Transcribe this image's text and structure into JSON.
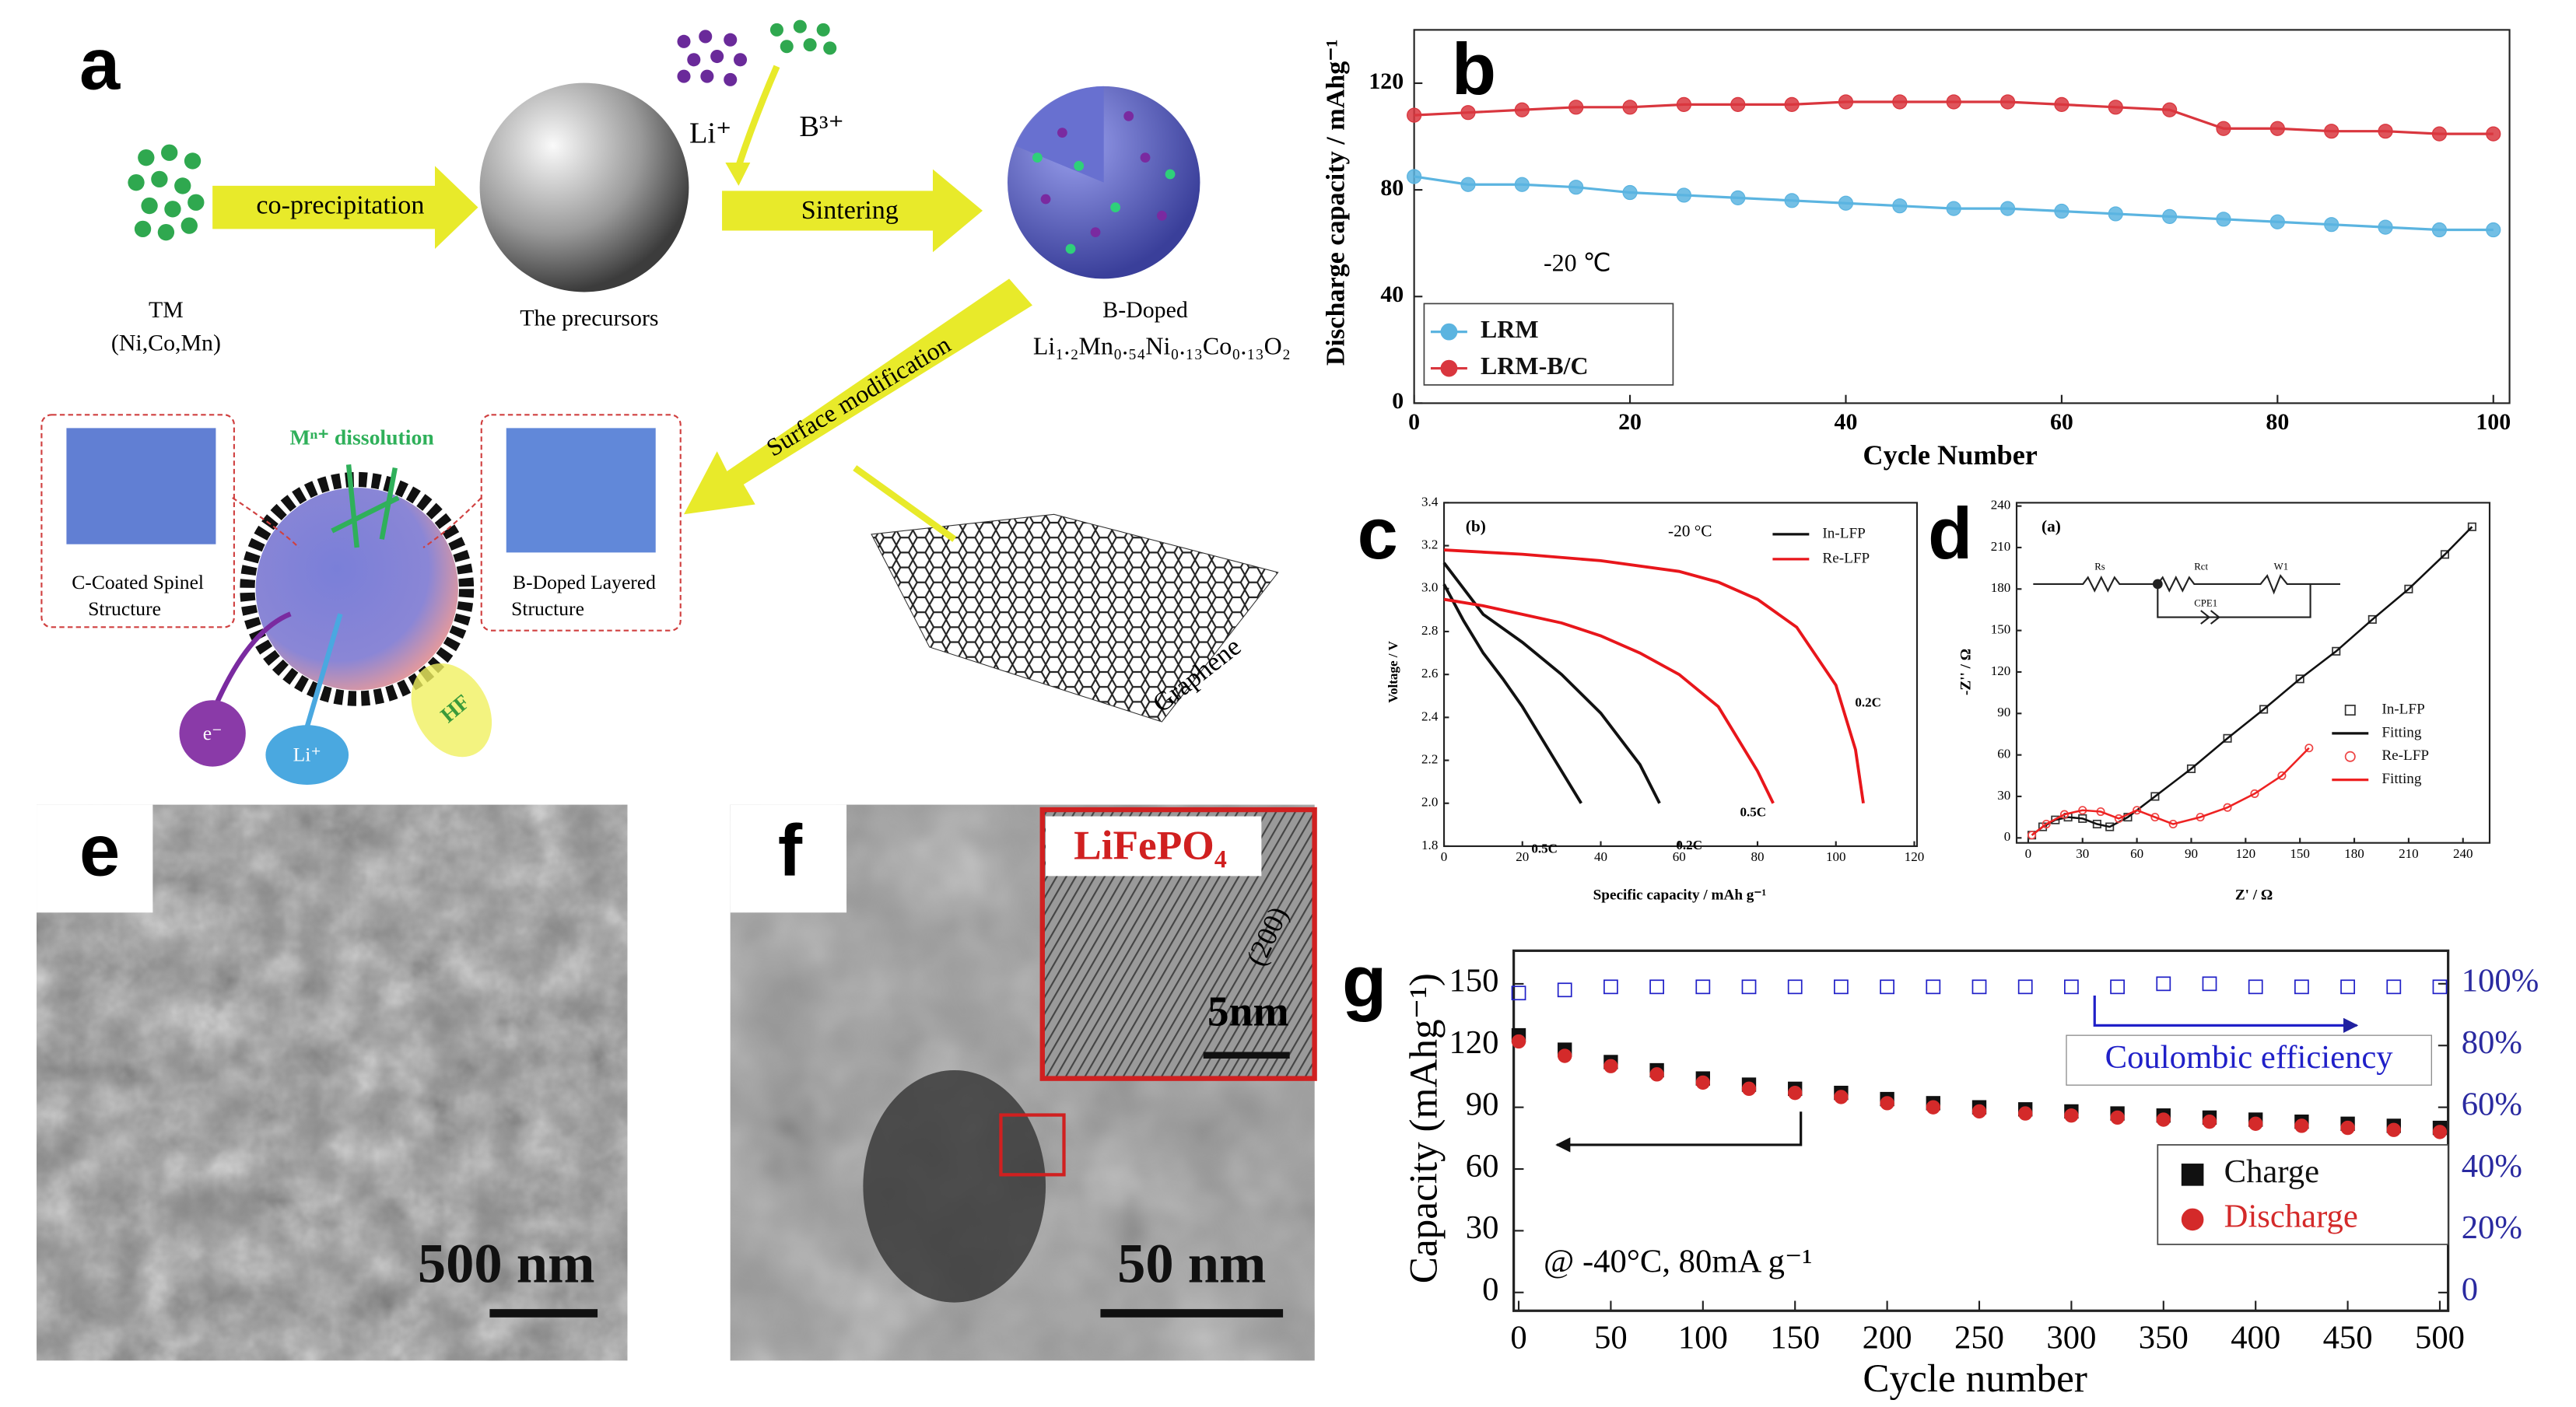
{
  "panels": {
    "a": "a",
    "b": "b",
    "c": "c",
    "d": "d",
    "e": "e",
    "f": "f",
    "g": "g"
  },
  "diagram": {
    "tm": "TM",
    "tm_elements": "(Ni,Co,Mn)",
    "coprecipitation": "co-precipitation",
    "precursors": "The precursors",
    "li": "Li⁺",
    "b": "B³⁺",
    "sintering": "Sintering",
    "bdoped": "B-Doped",
    "formula": "Li₁.₂Mn₀.₅₄Ni₀.₁₃Co₀.₁₃O₂",
    "surface": "Surface modification",
    "dissolution": "Mⁿ⁺ dissolution",
    "spinel_1": "C-Coated Spinel",
    "spinel_2": "Structure",
    "layered_1": "B-Doped Layered",
    "layered_2": "Structure",
    "graphene": "Graphene",
    "electron": "e⁻",
    "li_ion": "Li⁺",
    "hf": "HF"
  },
  "micrographs": {
    "e_scale": "500 nm",
    "f_scale": "50 nm",
    "f_inset": "LiFePO₄",
    "f_plane": "(200)",
    "f_inset_scale": "5nm"
  },
  "chart_data": [
    {
      "type": "line",
      "annotation": "-20 ℃",
      "x_label": "Cycle Number",
      "y_label": "Discharge capacity / mAhg⁻¹",
      "x": [
        0,
        5,
        10,
        15,
        20,
        25,
        30,
        35,
        40,
        45,
        50,
        55,
        60,
        65,
        70,
        75,
        80,
        85,
        90,
        95,
        100
      ],
      "series": [
        {
          "name": "LRM",
          "color": "#5bb4e0",
          "marker": "circle",
          "values": [
            85,
            82,
            82,
            81,
            79,
            78,
            77,
            76,
            75,
            74,
            73,
            73,
            72,
            71,
            70,
            69,
            68,
            67,
            66,
            65,
            65
          ]
        },
        {
          "name": "LRM-B/C",
          "color": "#d9363e",
          "marker": "circle",
          "values": [
            108,
            109,
            110,
            111,
            111,
            112,
            112,
            112,
            113,
            113,
            113,
            113,
            112,
            111,
            110,
            103,
            103,
            102,
            102,
            101,
            101
          ]
        }
      ],
      "xlim": [
        0,
        101.5
      ],
      "xticks": [
        0,
        20,
        40,
        60,
        80,
        100
      ],
      "ylim": [
        0,
        140
      ],
      "yticks": [
        0,
        40,
        80,
        120
      ],
      "legend": "lower left"
    },
    {
      "type": "line",
      "panel_label": "(b)",
      "annotation": "-20 °C",
      "x_label": "Specific capacity / mAh g⁻¹",
      "y_label": "Voltage / V",
      "series": [
        {
          "name": "In-LFP",
          "color": "#111111",
          "curves": [
            {
              "label": "0.5C",
              "x": [
                0,
                5,
                10,
                15,
                20,
                25,
                30,
                35
              ],
              "values": [
                3.02,
                2.85,
                2.7,
                2.58,
                2.45,
                2.3,
                2.15,
                2.0
              ]
            },
            {
              "label": "0.2C",
              "x": [
                0,
                5,
                10,
                20,
                30,
                40,
                50,
                55
              ],
              "values": [
                3.12,
                3.0,
                2.88,
                2.75,
                2.6,
                2.42,
                2.18,
                2.0
              ]
            }
          ]
        },
        {
          "name": "Re-LFP",
          "color": "#e8161b",
          "curves": [
            {
              "label": "0.5C",
              "x": [
                0,
                10,
                20,
                30,
                40,
                50,
                60,
                70,
                80,
                84
              ],
              "values": [
                2.95,
                2.92,
                2.88,
                2.84,
                2.78,
                2.7,
                2.6,
                2.45,
                2.15,
                2.0
              ]
            },
            {
              "label": "0.2C",
              "x": [
                0,
                20,
                40,
                60,
                70,
                80,
                90,
                100,
                105,
                107
              ],
              "values": [
                3.18,
                3.16,
                3.13,
                3.08,
                3.03,
                2.95,
                2.82,
                2.55,
                2.25,
                2.0
              ]
            }
          ]
        }
      ],
      "xlim": [
        0,
        120.7
      ],
      "xticks": [
        0,
        20,
        40,
        60,
        80,
        100,
        120
      ],
      "ylim": [
        1.8,
        3.4
      ],
      "yticks": [
        1.8,
        {
          "value": 2,
          "label": "2.0"
        },
        2.2,
        2.4,
        2.6,
        2.8,
        {
          "value": 3,
          "label": "3.0"
        },
        3.2,
        3.4
      ],
      "legend": "upper right"
    },
    {
      "type": "scatter",
      "panel_label": "(a)",
      "x_label": "Z' / Ω",
      "y_label": "-Z'' / Ω",
      "circuit_labels": [
        "Rs",
        "Rct",
        "W1",
        "CPE1"
      ],
      "series": [
        {
          "name": "In-LFP",
          "color": "#333333",
          "marker": "open-square",
          "x": [
            2,
            8,
            15,
            22,
            30,
            38,
            45,
            55,
            70,
            90,
            110,
            130,
            150,
            170,
            190,
            210,
            230,
            245
          ],
          "values": [
            2,
            8,
            13,
            15,
            14,
            10,
            8,
            15,
            30,
            50,
            72,
            93,
            115,
            135,
            158,
            180,
            205,
            225
          ]
        },
        {
          "name": "Fitting",
          "color": "#111111",
          "line": true,
          "x": [
            2,
            8,
            15,
            22,
            30,
            38,
            45,
            55,
            70,
            90,
            110,
            130,
            150,
            170,
            190,
            210,
            230,
            245
          ],
          "values": [
            2,
            8,
            13,
            15,
            14,
            10,
            8,
            15,
            30,
            50,
            72,
            93,
            115,
            135,
            158,
            180,
            205,
            225
          ]
        },
        {
          "name": "Re-LFP",
          "color": "#ee4444",
          "marker": "open-circle",
          "x": [
            2,
            10,
            20,
            30,
            40,
            50,
            60,
            70,
            80,
            95,
            110,
            125,
            140,
            155
          ],
          "values": [
            2,
            10,
            17,
            20,
            19,
            14,
            20,
            15,
            10,
            15,
            22,
            32,
            45,
            65
          ]
        },
        {
          "name": "Fitting",
          "color": "#ee2222",
          "line": true,
          "x": [
            2,
            10,
            20,
            30,
            40,
            50,
            60,
            70,
            80,
            95,
            110,
            125,
            140,
            155
          ],
          "values": [
            2,
            10,
            17,
            20,
            19,
            14,
            20,
            15,
            10,
            15,
            22,
            32,
            45,
            65
          ]
        }
      ],
      "xlim": [
        -6.4,
        254.7
      ],
      "xticks": [
        0,
        30,
        60,
        90,
        120,
        150,
        180,
        210,
        240
      ],
      "ylim": [
        -3.6,
        242.4
      ],
      "yticks": [
        0,
        30,
        60,
        90,
        120,
        150,
        180,
        210,
        240
      ],
      "legend": "right"
    },
    {
      "type": "scatter",
      "annotation": "@ -40°C, 80mA g⁻¹",
      "x_label": "Cycle number",
      "y_label": "Capacity (mAhg⁻¹)",
      "x": [
        0,
        25,
        50,
        75,
        100,
        125,
        150,
        175,
        200,
        225,
        250,
        275,
        300,
        325,
        350,
        375,
        400,
        425,
        450,
        475,
        500
      ],
      "series": [
        {
          "name": "Charge",
          "color": "#111111",
          "marker": "square",
          "values": [
            125,
            118,
            112,
            108,
            104,
            101,
            99,
            97,
            94,
            92,
            90,
            89,
            88,
            87,
            86,
            85,
            84,
            83,
            82,
            81,
            80
          ]
        },
        {
          "name": "Discharge",
          "color": "#d42a2a",
          "marker": "circle",
          "values": [
            122,
            115,
            110,
            106,
            102,
            99,
            97,
            95,
            92,
            90,
            88,
            87,
            86,
            85,
            84,
            83,
            82,
            81,
            80,
            79,
            78
          ]
        },
        {
          "name": "Coulombic efficiency",
          "color": "#2020c8",
          "marker": "open-square",
          "axis": "y2",
          "values": [
            97,
            98,
            99,
            99,
            99,
            99,
            99,
            99,
            99,
            99,
            99,
            99,
            99,
            99,
            100,
            100,
            99,
            99,
            99,
            99,
            99
          ]
        }
      ],
      "xlim": [
        -2.7,
        504.5
      ],
      "xticks": [
        0,
        50,
        100,
        150,
        200,
        250,
        300,
        350,
        400,
        450,
        500
      ],
      "ylim": [
        -8.9,
        166.1
      ],
      "yticks": [
        0,
        30,
        60,
        90,
        120,
        150
      ],
      "y2lim": [
        -5.9,
        110.7
      ],
      "y2ticks": [
        0,
        {
          "value": 20,
          "label": "20%"
        },
        {
          "value": 40,
          "label": "40%"
        },
        {
          "value": 60,
          "label": "60%"
        },
        {
          "value": 80,
          "label": "80%"
        },
        {
          "value": 100,
          "label": "100%"
        }
      ],
      "legend": "lower right"
    }
  ]
}
